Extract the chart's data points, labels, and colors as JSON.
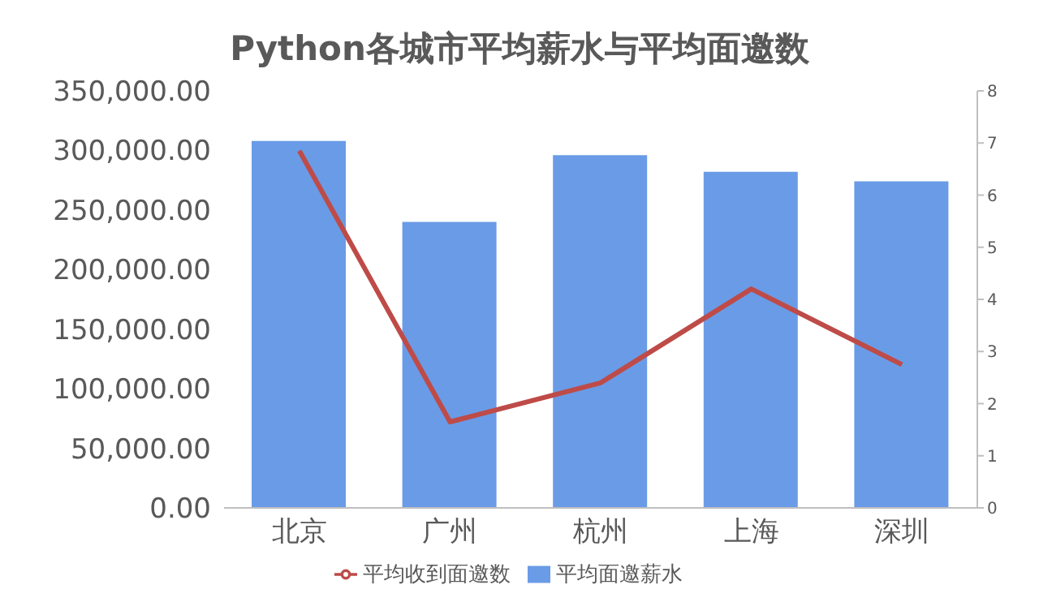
{
  "chart_data": {
    "type": "bar",
    "title": "Python各城市平均薪水与平均面邀数",
    "categories": [
      "北京",
      "广州",
      "杭州",
      "上海",
      "深圳"
    ],
    "series": [
      {
        "name": "平均面邀薪水",
        "color": "#6a9be6",
        "values": [
          308000,
          240000,
          296000,
          282000,
          274000
        ]
      },
      {
        "name": "平均收到面邀数",
        "type": "line",
        "axis": "y2",
        "color": "#be4b48",
        "values": [
          6.85,
          1.65,
          2.4,
          4.2,
          2.75
        ]
      }
    ],
    "ylim": [
      0,
      350000
    ],
    "yticks": [
      {
        "value": 0,
        "label": "0.00"
      },
      {
        "value": 50000,
        "label": "50,000.00"
      },
      {
        "value": 100000,
        "label": "100,000.00"
      },
      {
        "value": 150000,
        "label": "150,000.00"
      },
      {
        "value": 200000,
        "label": "200,000.00"
      },
      {
        "value": 250000,
        "label": "250,000.00"
      },
      {
        "value": 300000,
        "label": "300,000.00"
      },
      {
        "value": 350000,
        "label": "350,000.00"
      }
    ],
    "y2lim": [
      0,
      8
    ],
    "y2ticks": [
      0,
      1,
      2,
      3,
      4,
      5,
      6,
      7,
      8
    ],
    "legend": "bottom",
    "marker": "none"
  }
}
